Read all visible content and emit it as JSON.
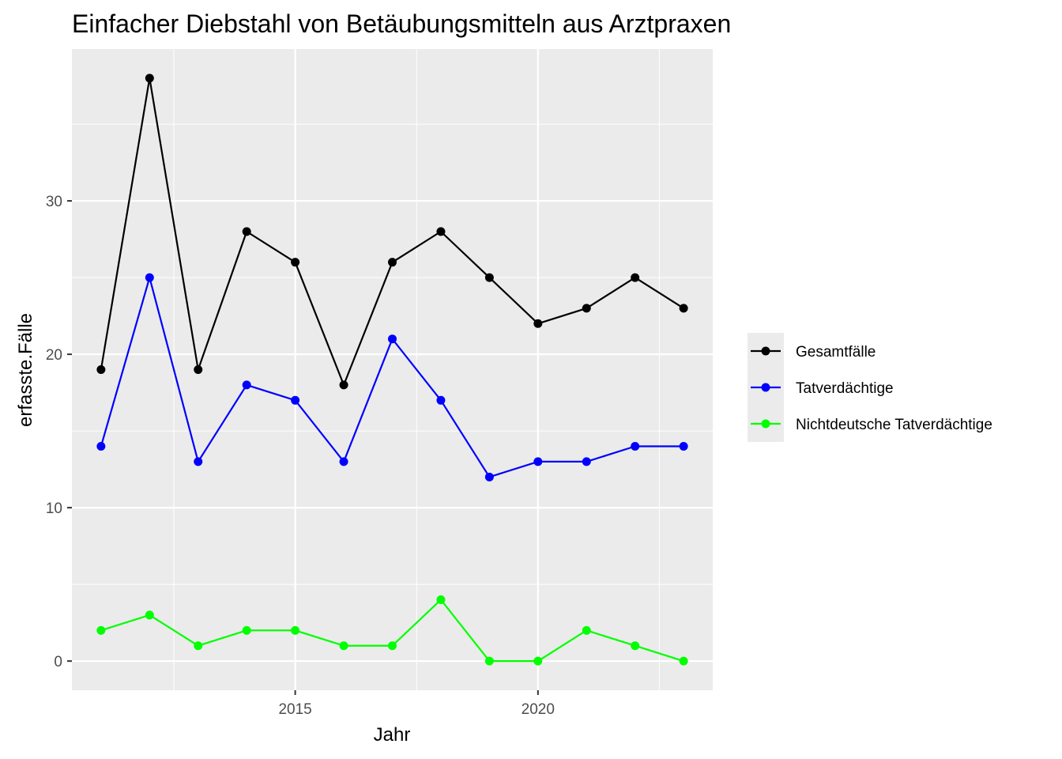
{
  "chart_data": {
    "type": "line",
    "title": "Einfacher Diebstahl von Betäubungsmitteln aus Arztpraxen",
    "xlabel": "Jahr",
    "ylabel": "erfasste.Fälle",
    "x": [
      2011,
      2012,
      2013,
      2014,
      2015,
      2016,
      2017,
      2018,
      2019,
      2020,
      2021,
      2022,
      2023
    ],
    "xlim": [
      2010.4,
      2023.6
    ],
    "ylim": [
      -1.9,
      39.9
    ],
    "x_ticks": [
      2015,
      2020
    ],
    "x_tick_labels": [
      "2015",
      "2020"
    ],
    "y_ticks": [
      0,
      10,
      20,
      30
    ],
    "y_tick_labels": [
      "0",
      "10",
      "20",
      "30"
    ],
    "grid": true,
    "legend_position": "right",
    "background": "#ebebeb",
    "series": [
      {
        "name": "Gesamtfälle",
        "color": "#000000",
        "values": [
          19,
          38,
          19,
          28,
          26,
          18,
          26,
          28,
          25,
          22,
          23,
          25,
          23
        ]
      },
      {
        "name": "Tatverdächtige",
        "color": "#0000ff",
        "values": [
          14,
          25,
          13,
          18,
          17,
          13,
          21,
          17,
          12,
          13,
          13,
          14,
          14
        ]
      },
      {
        "name": "Nichtdeutsche Tatverdächtige",
        "color": "#00ff00",
        "values": [
          2,
          3,
          1,
          2,
          2,
          1,
          1,
          4,
          0,
          0,
          2,
          1,
          0
        ]
      }
    ]
  }
}
